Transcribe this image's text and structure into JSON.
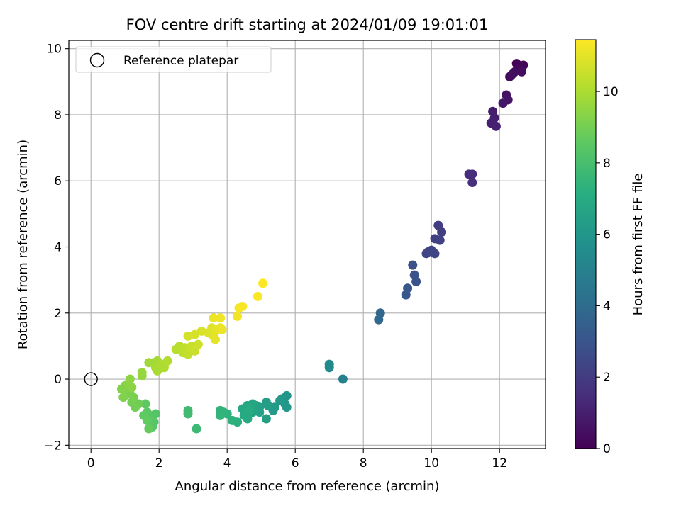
{
  "chart_data": {
    "type": "scatter",
    "title": "FOV centre drift starting at 2024/01/09 19:01:01",
    "xlabel": "Angular distance from reference (arcmin)",
    "ylabel": "Rotation from reference (arcmin)",
    "xlim": [
      -0.65,
      13.35
    ],
    "ylim": [
      -2.1,
      10.25
    ],
    "xticks": [
      0,
      2,
      4,
      6,
      8,
      10,
      12
    ],
    "yticks": [
      -2,
      0,
      2,
      4,
      6,
      8,
      10
    ],
    "grid": true,
    "legend": {
      "placement": "top-left",
      "entries": [
        "Reference platepar"
      ]
    },
    "reference_point": {
      "x": 0,
      "y": 0,
      "label": "Reference platepar"
    },
    "colorbar": {
      "label": "Hours from first FF file",
      "colormap": "viridis",
      "range": [
        0,
        11.45
      ],
      "ticks": [
        0,
        2,
        4,
        6,
        8,
        10
      ]
    },
    "series": [
      {
        "points": [
          [
            12.5,
            9.55,
            0.05
          ],
          [
            12.7,
            9.5,
            0.1
          ],
          [
            12.6,
            9.45,
            0.15
          ],
          [
            12.45,
            9.3,
            0.2
          ],
          [
            12.55,
            9.35,
            0.25
          ],
          [
            12.35,
            9.2,
            0.3
          ],
          [
            12.3,
            9.15,
            0.35
          ],
          [
            12.65,
            9.3,
            0.4
          ],
          [
            12.4,
            9.25,
            0.45
          ],
          [
            12.2,
            8.6,
            0.6
          ],
          [
            12.25,
            8.45,
            0.65
          ],
          [
            12.1,
            8.35,
            0.7
          ],
          [
            11.8,
            8.1,
            0.9
          ],
          [
            11.85,
            7.9,
            0.95
          ],
          [
            11.75,
            7.75,
            1.0
          ],
          [
            11.9,
            7.65,
            1.05
          ],
          [
            11.1,
            6.2,
            1.4
          ],
          [
            11.2,
            6.2,
            1.45
          ],
          [
            11.2,
            5.95,
            1.5
          ],
          [
            10.2,
            4.65,
            2.05
          ],
          [
            10.3,
            4.45,
            2.1
          ],
          [
            10.1,
            4.25,
            2.15
          ],
          [
            10.25,
            4.2,
            2.2
          ],
          [
            9.9,
            3.85,
            2.25
          ],
          [
            10.0,
            3.9,
            2.3
          ],
          [
            9.85,
            3.8,
            2.35
          ],
          [
            10.1,
            3.8,
            2.4
          ],
          [
            9.45,
            3.45,
            2.8
          ],
          [
            9.5,
            3.15,
            2.85
          ],
          [
            9.55,
            2.95,
            2.9
          ],
          [
            9.3,
            2.75,
            3.1
          ],
          [
            9.25,
            2.55,
            3.15
          ],
          [
            8.5,
            2.0,
            3.8
          ],
          [
            8.45,
            1.8,
            3.85
          ],
          [
            7.4,
            0.0,
            5.0
          ],
          [
            7.0,
            0.45,
            5.35
          ],
          [
            7.0,
            0.35,
            5.4
          ],
          [
            5.75,
            -0.5,
            5.9
          ],
          [
            5.7,
            -0.75,
            5.95
          ],
          [
            5.75,
            -0.85,
            6.0
          ],
          [
            5.6,
            -0.6,
            6.05
          ],
          [
            5.55,
            -0.65,
            6.1
          ],
          [
            5.4,
            -0.85,
            6.15
          ],
          [
            5.35,
            -0.95,
            6.2
          ],
          [
            5.15,
            -0.7,
            6.3
          ],
          [
            5.2,
            -0.8,
            6.35
          ],
          [
            5.15,
            -1.2,
            6.4
          ],
          [
            4.95,
            -0.85,
            6.45
          ],
          [
            4.95,
            -1.0,
            6.5
          ],
          [
            4.85,
            -0.8,
            6.55
          ],
          [
            4.75,
            -1.0,
            6.6
          ],
          [
            4.75,
            -0.75,
            6.65
          ],
          [
            4.6,
            -0.8,
            6.75
          ],
          [
            4.55,
            -1.05,
            6.8
          ],
          [
            4.45,
            -0.9,
            6.85
          ],
          [
            4.5,
            -1.1,
            6.9
          ],
          [
            4.6,
            -1.2,
            6.95
          ],
          [
            4.65,
            -0.95,
            7.0
          ],
          [
            4.3,
            -1.3,
            7.2
          ],
          [
            4.15,
            -1.25,
            7.25
          ],
          [
            4.0,
            -1.05,
            7.3
          ],
          [
            3.8,
            -0.95,
            7.35
          ],
          [
            3.9,
            -1.0,
            7.4
          ],
          [
            3.8,
            -1.1,
            7.45
          ],
          [
            3.1,
            -1.5,
            7.7
          ],
          [
            2.85,
            -0.95,
            7.8
          ],
          [
            2.85,
            -1.05,
            7.85
          ],
          [
            1.9,
            -1.05,
            8.3
          ],
          [
            1.85,
            -1.3,
            8.35
          ],
          [
            1.8,
            -1.45,
            8.4
          ],
          [
            1.75,
            -1.2,
            8.45
          ],
          [
            1.65,
            -1.0,
            8.5
          ],
          [
            1.6,
            -0.75,
            8.55
          ],
          [
            1.55,
            -1.1,
            8.6
          ],
          [
            1.65,
            -1.25,
            8.65
          ],
          [
            1.7,
            -1.5,
            8.7
          ],
          [
            1.4,
            -0.75,
            8.9
          ],
          [
            1.3,
            -0.85,
            8.95
          ],
          [
            1.2,
            -0.7,
            9.0
          ],
          [
            1.25,
            -0.55,
            9.05
          ],
          [
            1.15,
            -0.45,
            9.1
          ],
          [
            1.05,
            -0.4,
            9.15
          ],
          [
            0.95,
            -0.55,
            9.2
          ],
          [
            0.9,
            -0.3,
            9.25
          ],
          [
            1.0,
            -0.2,
            9.3
          ],
          [
            1.1,
            -0.15,
            9.35
          ],
          [
            1.2,
            -0.25,
            9.4
          ],
          [
            1.15,
            0.0,
            9.45
          ],
          [
            1.5,
            0.1,
            9.55
          ],
          [
            1.5,
            0.2,
            9.6
          ],
          [
            1.7,
            0.5,
            9.75
          ],
          [
            1.85,
            0.5,
            9.8
          ],
          [
            1.95,
            0.55,
            9.85
          ],
          [
            1.9,
            0.35,
            9.9
          ],
          [
            1.95,
            0.25,
            9.95
          ],
          [
            2.05,
            0.45,
            10.0
          ],
          [
            2.15,
            0.35,
            10.05
          ],
          [
            2.25,
            0.55,
            10.1
          ],
          [
            2.5,
            0.9,
            10.2
          ],
          [
            2.6,
            1.0,
            10.25
          ],
          [
            2.7,
            0.8,
            10.3
          ],
          [
            2.75,
            0.95,
            10.35
          ],
          [
            2.85,
            0.75,
            10.4
          ],
          [
            2.9,
            0.9,
            10.45
          ],
          [
            2.95,
            1.0,
            10.5
          ],
          [
            3.05,
            0.85,
            10.55
          ],
          [
            3.15,
            1.05,
            10.6
          ],
          [
            2.85,
            1.3,
            10.7
          ],
          [
            3.05,
            1.35,
            10.75
          ],
          [
            3.25,
            1.45,
            10.8
          ],
          [
            3.45,
            1.4,
            10.85
          ],
          [
            3.55,
            1.55,
            10.9
          ],
          [
            3.6,
            1.3,
            10.95
          ],
          [
            3.65,
            1.2,
            11.0
          ],
          [
            3.7,
            1.5,
            11.05
          ],
          [
            3.8,
            1.55,
            11.1
          ],
          [
            3.85,
            1.5,
            11.15
          ],
          [
            3.6,
            1.85,
            11.15
          ],
          [
            3.8,
            1.85,
            11.2
          ],
          [
            4.3,
            1.9,
            11.25
          ],
          [
            4.35,
            2.15,
            11.3
          ],
          [
            4.45,
            2.2,
            11.35
          ],
          [
            4.9,
            2.5,
            11.4
          ],
          [
            5.05,
            2.9,
            11.45
          ]
        ]
      }
    ]
  }
}
